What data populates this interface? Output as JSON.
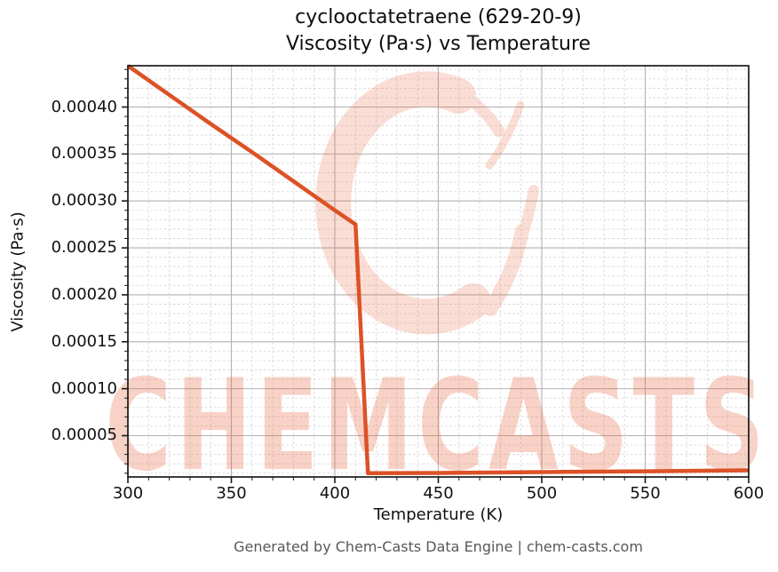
{
  "title": {
    "line1": "cyclooctatetraene (629-20-9)",
    "line2": "Viscosity (Pa·s) vs Temperature"
  },
  "footer": {
    "text": "Generated by Chem-Casts Data Engine | chem-casts.com"
  },
  "watermark": {
    "text": "CHEMCASTS",
    "logo": "chemcasts-ring-logo",
    "color": "#e85c33"
  },
  "chart_data": {
    "type": "line",
    "title": "cyclooctatetraene (629-20-9) — Viscosity (Pa·s) vs Temperature",
    "xlabel": "Temperature (K)",
    "ylabel": "Viscosity (Pa·s)",
    "xlim": [
      300,
      600
    ],
    "ylim": [
      6e-06,
      0.000444
    ],
    "xticks": [
      300,
      350,
      400,
      450,
      500,
      550,
      600
    ],
    "yticks": [
      5e-05,
      0.0001,
      0.00015,
      0.0002,
      0.00025,
      0.0003,
      0.00035,
      0.0004
    ],
    "minor_x_step": 10,
    "minor_y_step": 1e-05,
    "grid": "major solid gray, minor dashed light gray",
    "legend": "none",
    "line_color": "#dc5226",
    "series": [
      {
        "name": "viscosity",
        "points": [
          [
            300,
            0.000444
          ],
          [
            320,
            0.000413
          ],
          [
            340,
            0.000382
          ],
          [
            360,
            0.000352
          ],
          [
            380,
            0.000321
          ],
          [
            400,
            0.00029
          ],
          [
            410,
            0.000275
          ],
          [
            416,
            1e-05
          ],
          [
            450,
            1.03e-05
          ],
          [
            500,
            1.12e-05
          ],
          [
            550,
            1.21e-05
          ],
          [
            600,
            1.31e-05
          ]
        ]
      }
    ]
  }
}
